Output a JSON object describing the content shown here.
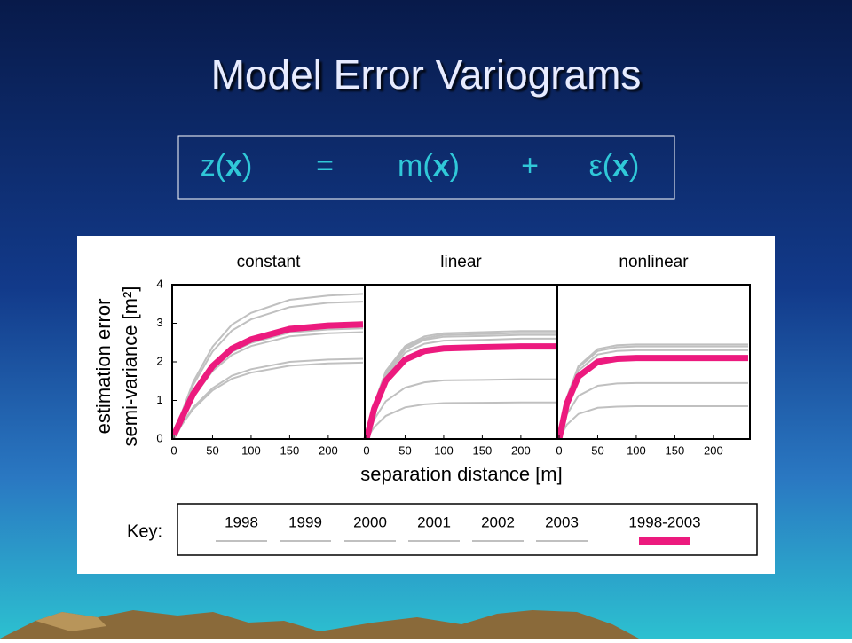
{
  "title": "Model Error Variograms",
  "equation": [
    [
      "z(",
      "x",
      ")"
    ],
    [
      "="
    ],
    [
      "m(",
      "x",
      ")"
    ],
    [
      "+"
    ],
    [
      "ε(",
      "x",
      ")"
    ]
  ],
  "xlabel": "separation distance [m]",
  "key": {
    "label": "Key:",
    "entries": [
      {
        "name": "1998",
        "color": "#c0c0c0"
      },
      {
        "name": "1999",
        "color": "#c0c0c0"
      },
      {
        "name": "2000",
        "color": "#c0c0c0"
      },
      {
        "name": "2001",
        "color": "#c0c0c0"
      },
      {
        "name": "2002",
        "color": "#c0c0c0"
      },
      {
        "name": "2003",
        "color": "#c0c0c0"
      },
      {
        "name": "1998-2003",
        "color": "#ec1a7e"
      }
    ]
  },
  "chart_data": [
    {
      "type": "line",
      "title": "constant",
      "ylabel": [
        "estimation error",
        "semi-variance [m²]"
      ],
      "x": [
        0,
        10,
        25,
        50,
        75,
        100,
        150,
        200,
        245
      ],
      "xlim": [
        0,
        245
      ],
      "xticks": [
        0,
        50,
        100,
        150,
        200
      ],
      "ylim": [
        0,
        4
      ],
      "yticks": [
        0,
        1,
        2,
        3,
        4
      ],
      "series": [
        {
          "color": "#c0c0c0",
          "values": [
            0,
            0.68,
            1.48,
            2.39,
            2.96,
            3.27,
            3.61,
            3.72,
            3.76
          ]
        },
        {
          "color": "#c0c0c0",
          "values": [
            0,
            0.65,
            1.4,
            2.27,
            2.81,
            3.1,
            3.42,
            3.53,
            3.56
          ]
        },
        {
          "color": "#c0c0c0",
          "values": [
            0,
            0.52,
            1.13,
            1.83,
            2.26,
            2.49,
            2.76,
            2.84,
            2.87
          ]
        },
        {
          "color": "#c0c0c0",
          "values": [
            0,
            0.5,
            1.09,
            1.76,
            2.18,
            2.41,
            2.66,
            2.74,
            2.77
          ]
        },
        {
          "color": "#c0c0c0",
          "values": [
            0,
            0.38,
            0.82,
            1.32,
            1.64,
            1.81,
            2.0,
            2.06,
            2.08
          ]
        },
        {
          "color": "#c0c0c0",
          "values": [
            0,
            0.36,
            0.78,
            1.26,
            1.56,
            1.72,
            1.9,
            1.96,
            1.98
          ]
        },
        {
          "color": "#ec1a7e",
          "values": [
            0.1,
            0.54,
            1.17,
            1.89,
            2.34,
            2.58,
            2.85,
            2.94,
            2.97
          ]
        }
      ]
    },
    {
      "type": "line",
      "title": "linear",
      "x": [
        0,
        10,
        25,
        50,
        75,
        100,
        150,
        200,
        245
      ],
      "xlim": [
        0,
        245
      ],
      "xticks": [
        0,
        50,
        100,
        150,
        200
      ],
      "ylim": [
        0,
        4
      ],
      "series": [
        {
          "color": "#c0c0c0",
          "values": [
            0,
            0.92,
            1.76,
            2.41,
            2.66,
            2.74,
            2.77,
            2.8,
            2.8
          ]
        },
        {
          "color": "#c0c0c0",
          "values": [
            0,
            0.91,
            1.73,
            2.37,
            2.61,
            2.7,
            2.72,
            2.75,
            2.75
          ]
        },
        {
          "color": "#c0c0c0",
          "values": [
            0,
            0.89,
            1.7,
            2.32,
            2.57,
            2.65,
            2.67,
            2.7,
            2.7
          ]
        },
        {
          "color": "#c0c0c0",
          "values": [
            0,
            0.86,
            1.64,
            2.24,
            2.47,
            2.55,
            2.57,
            2.6,
            2.6
          ]
        },
        {
          "color": "#c0c0c0",
          "values": [
            0,
            0.51,
            0.98,
            1.33,
            1.47,
            1.52,
            1.53,
            1.55,
            1.55
          ]
        },
        {
          "color": "#c0c0c0",
          "values": [
            0,
            0.31,
            0.6,
            0.82,
            0.9,
            0.93,
            0.94,
            0.95,
            0.95
          ]
        },
        {
          "color": "#ec1a7e",
          "values": [
            0,
            0.79,
            1.51,
            2.06,
            2.28,
            2.35,
            2.38,
            2.4,
            2.4
          ]
        }
      ]
    },
    {
      "type": "line",
      "title": "nonlinear",
      "x": [
        0,
        10,
        25,
        50,
        75,
        100,
        150,
        200,
        245
      ],
      "xlim": [
        0,
        245
      ],
      "xticks": [
        0,
        50,
        100,
        150,
        200
      ],
      "ylim": [
        0,
        4
      ],
      "series": [
        {
          "color": "#c0c0c0",
          "values": [
            0,
            1.08,
            1.89,
            2.33,
            2.43,
            2.45,
            2.45,
            2.45,
            2.45
          ]
        },
        {
          "color": "#c0c0c0",
          "values": [
            0,
            1.06,
            1.85,
            2.28,
            2.38,
            2.4,
            2.4,
            2.4,
            2.4
          ]
        },
        {
          "color": "#c0c0c0",
          "values": [
            0,
            1.01,
            1.77,
            2.19,
            2.28,
            2.3,
            2.3,
            2.3,
            2.3
          ]
        },
        {
          "color": "#c0c0c0",
          "values": [
            0,
            0.92,
            1.62,
            2.0,
            2.08,
            2.1,
            2.1,
            2.1,
            2.1
          ]
        },
        {
          "color": "#c0c0c0",
          "values": [
            0,
            0.64,
            1.12,
            1.38,
            1.44,
            1.45,
            1.45,
            1.45,
            1.45
          ]
        },
        {
          "color": "#c0c0c0",
          "values": [
            0,
            0.37,
            0.65,
            0.81,
            0.84,
            0.85,
            0.85,
            0.85,
            0.85
          ]
        },
        {
          "color": "#ec1a7e",
          "values": [
            0,
            0.92,
            1.62,
            2.0,
            2.08,
            2.1,
            2.1,
            2.1,
            2.1
          ]
        }
      ]
    }
  ]
}
